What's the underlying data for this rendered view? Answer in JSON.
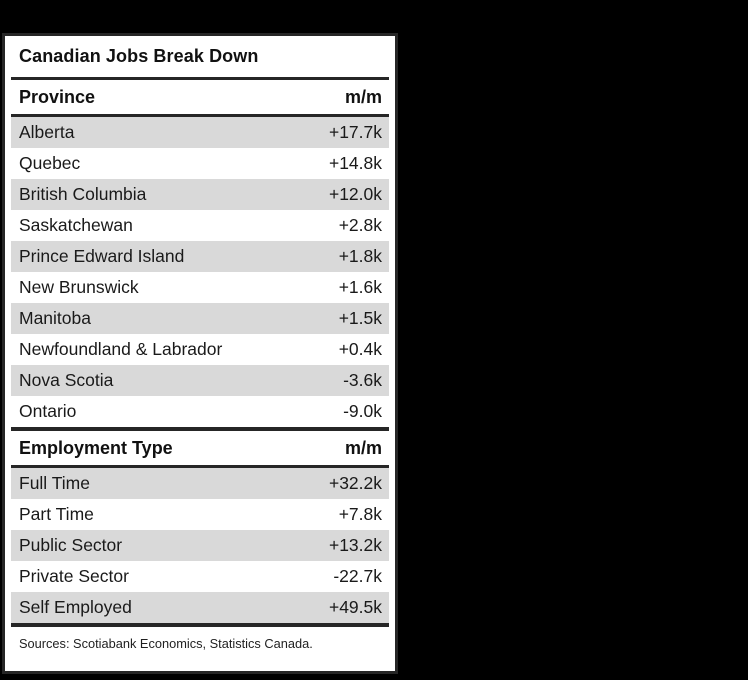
{
  "chart_data": {
    "type": "table",
    "title": "Canadian Jobs Break Down",
    "value_column_unit": "m/m",
    "sections": [
      {
        "header": {
          "label": "Province",
          "value": "m/m"
        },
        "rows": [
          {
            "label": "Alberta",
            "value": "+17.7k"
          },
          {
            "label": "Quebec",
            "value": "+14.8k"
          },
          {
            "label": "British Columbia",
            "value": "+12.0k"
          },
          {
            "label": "Saskatchewan",
            "value": "+2.8k"
          },
          {
            "label": "Prince Edward Island",
            "value": "+1.8k"
          },
          {
            "label": "New Brunswick",
            "value": "+1.6k"
          },
          {
            "label": "Manitoba",
            "value": "+1.5k"
          },
          {
            "label": "Newfoundland & Labrador",
            "value": "+0.4k"
          },
          {
            "label": "Nova Scotia",
            "value": "-3.6k"
          },
          {
            "label": "Ontario",
            "value": "-9.0k"
          }
        ]
      },
      {
        "header": {
          "label": "Employment Type",
          "value": "m/m"
        },
        "rows": [
          {
            "label": "Full Time",
            "value": "+32.2k"
          },
          {
            "label": "Part Time",
            "value": "+7.8k"
          },
          {
            "label": "Public Sector",
            "value": "+13.2k"
          },
          {
            "label": "Private Sector",
            "value": "-22.7k"
          },
          {
            "label": "Self Employed",
            "value": "+49.5k"
          }
        ]
      }
    ],
    "source_note": "Sources: Scotiabank Economics, Statistics Canada.",
    "layout": {
      "legend": "none",
      "grid": "row-striping"
    }
  },
  "colors": {
    "page_background": "#000000",
    "card_background": "#ffffff",
    "row_stripe": "#d9d9d9",
    "rule": "#262626",
    "text": "#1a1a1a"
  }
}
